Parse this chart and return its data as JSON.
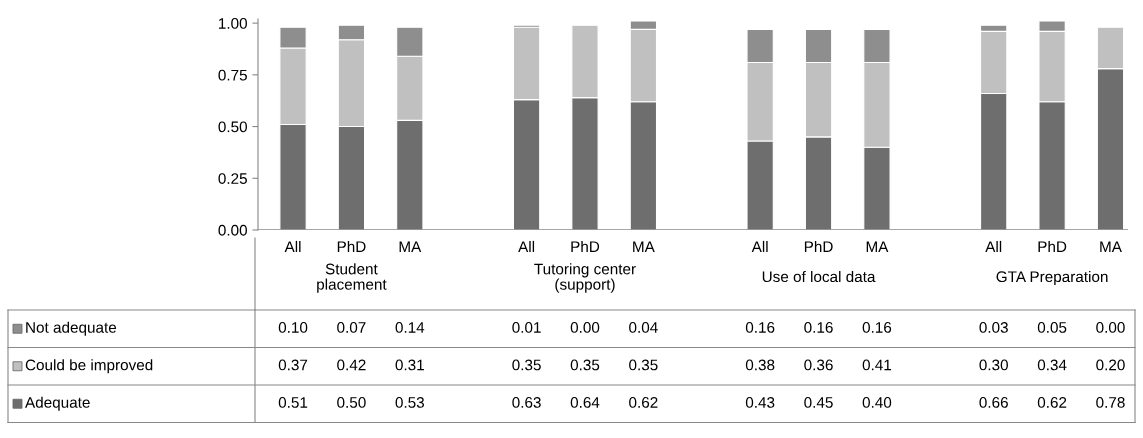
{
  "chart_data": {
    "type": "bar",
    "stacked": true,
    "categories": [
      "All",
      "PhD",
      "MA",
      null,
      "All",
      "PhD",
      "MA",
      null,
      "All",
      "PhD",
      "MA",
      null,
      "All",
      "PhD",
      "MA"
    ],
    "series": [
      {
        "name": "Adequate",
        "color": "#6e6e6e",
        "values": [
          0.51,
          0.5,
          0.53,
          null,
          0.63,
          0.64,
          0.62,
          null,
          0.43,
          0.45,
          0.4,
          null,
          0.66,
          0.62,
          0.78
        ],
        "value_labels": [
          "0.51",
          "0.50",
          "0.53",
          null,
          "0.63",
          "0.64",
          "0.62",
          null,
          "0.43",
          "0.45",
          "0.40",
          null,
          "0.66",
          "0.62",
          "0.78"
        ]
      },
      {
        "name": "Could be improved",
        "color": "#c0c0c0",
        "values": [
          0.37,
          0.42,
          0.31,
          null,
          0.35,
          0.35,
          0.35,
          null,
          0.38,
          0.36,
          0.41,
          null,
          0.3,
          0.34,
          0.2
        ],
        "value_labels": [
          "0.37",
          "0.42",
          "0.31",
          null,
          "0.35",
          "0.35",
          "0.35",
          null,
          "0.38",
          "0.36",
          "0.41",
          null,
          "0.30",
          "0.34",
          "0.20"
        ]
      },
      {
        "name": "Not adequate",
        "color": "#8e8e8e",
        "values": [
          0.1,
          0.07,
          0.14,
          null,
          0.01,
          0.0,
          0.04,
          null,
          0.16,
          0.16,
          0.16,
          null,
          0.03,
          0.05,
          0.0
        ],
        "value_labels": [
          "0.10",
          "0.07",
          "0.14",
          null,
          "0.01",
          "0.00",
          "0.04",
          null,
          "0.16",
          "0.16",
          "0.16",
          null,
          "0.03",
          "0.05",
          "0.00"
        ]
      }
    ],
    "annotations": [
      "Student\nplacement",
      "Tutoring center\n(support)",
      "Use of local data",
      "GTA Preparation"
    ],
    "ylim": [
      0,
      1.02
    ],
    "yticks": [
      {
        "value": 0,
        "label": "0.00"
      },
      {
        "value": 0.25,
        "label": "0.25"
      },
      {
        "value": 0.5,
        "label": "0.50"
      },
      {
        "value": 0.75,
        "label": "0.75"
      },
      {
        "value": 1,
        "label": "1.00"
      }
    ],
    "grid": false,
    "legend": "bottom"
  }
}
